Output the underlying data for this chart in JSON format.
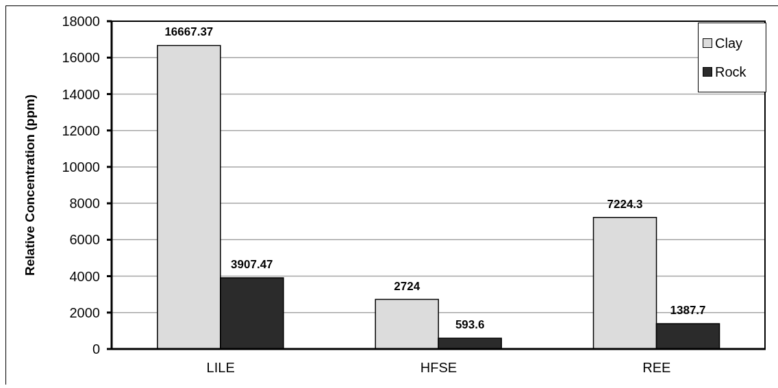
{
  "chart_data": {
    "type": "bar",
    "categories": [
      "LILE",
      "HFSE",
      "REE"
    ],
    "series": [
      {
        "name": "Clay",
        "color": "#dcdcdc",
        "values": [
          16667.37,
          2724,
          7224.3
        ]
      },
      {
        "name": "Rock",
        "color": "#2b2b2b",
        "values": [
          3907.47,
          593.6,
          1387.7
        ]
      }
    ],
    "ylabel": "Relative Concentration (ppm)",
    "ylim": [
      0,
      18000
    ],
    "yticks": [
      0,
      2000,
      4000,
      6000,
      8000,
      10000,
      12000,
      14000,
      16000,
      18000
    ],
    "grid": "y",
    "legend": "top right",
    "data_labels": true
  }
}
